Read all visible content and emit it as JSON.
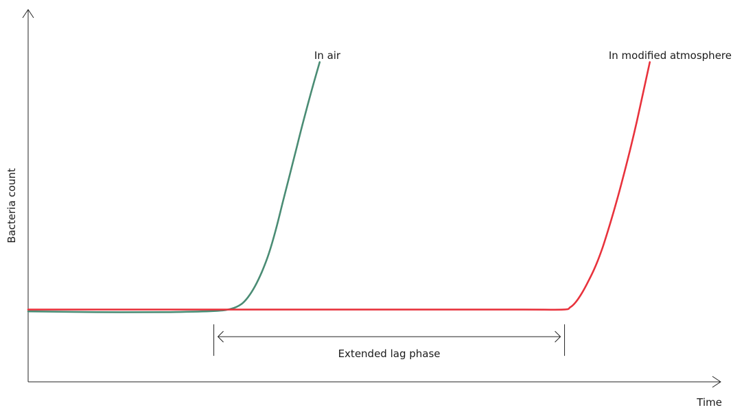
{
  "chart_data": {
    "type": "line",
    "title": "",
    "xlabel": "Time",
    "ylabel": "Bacteria count",
    "xlim": [
      0,
      100
    ],
    "ylim": [
      0,
      100
    ],
    "x_ticks": [],
    "y_ticks": [],
    "grid": false,
    "legend": "none",
    "series": [
      {
        "name": "In air",
        "color": "#4a8c74",
        "x": [
          0,
          10,
          20,
          27,
          29.5,
          31,
          32,
          33,
          34,
          35,
          36,
          37,
          38,
          39,
          40,
          41.2,
          42.4
        ],
        "y": [
          19.5,
          19.3,
          19.3,
          19.6,
          20.2,
          21.5,
          23.5,
          26.5,
          30.5,
          35.5,
          42,
          49.5,
          57,
          64.5,
          72,
          80.5,
          88.5
        ]
      },
      {
        "name": "In modified atmosphere",
        "color": "#e8323c",
        "x": [
          0,
          10,
          30,
          50,
          72,
          77.8,
          78.8,
          79.6,
          80.5,
          81.5,
          82.5,
          83.5,
          84.5,
          85.5,
          86.5,
          87.5,
          88.5,
          90.4
        ],
        "y": [
          20,
          20,
          20,
          20,
          20,
          20,
          20.6,
          22,
          24.5,
          28,
          32,
          37,
          43,
          49.5,
          56.5,
          64,
          72,
          88.5
        ]
      }
    ],
    "annotations": [
      {
        "label": "Extended lag phase",
        "x_start": 27,
        "x_end": 78,
        "y": 12.5
      }
    ]
  }
}
